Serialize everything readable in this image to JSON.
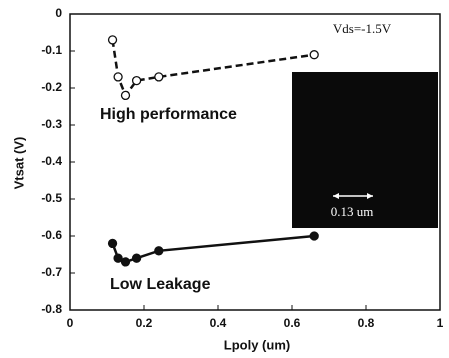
{
  "chart_data": {
    "type": "line",
    "x_label": "Lpoly (um)",
    "y_label": "Vtsat (V)",
    "annotations": [
      "Vds=-1.5V",
      "0.13 um"
    ],
    "xlim": [
      0,
      1
    ],
    "xticks": [
      0,
      0.2,
      0.4,
      0.6,
      0.8,
      1
    ],
    "ylim": [
      -0.8,
      0
    ],
    "yticks": [
      0,
      -0.1,
      -0.2,
      -0.3,
      -0.4,
      -0.5,
      -0.6,
      -0.7,
      -0.8
    ],
    "series": [
      {
        "name": "High performance",
        "color": "#111111",
        "marker": "open",
        "dashed": true,
        "x": [
          0.115,
          0.13,
          0.15,
          0.18,
          0.24,
          0.66
        ],
        "values": [
          -0.07,
          -0.17,
          -0.22,
          -0.18,
          -0.17,
          -0.11
        ]
      },
      {
        "name": "Low Leakage",
        "color": "#111111",
        "marker": "filled",
        "dashed": false,
        "x": [
          0.115,
          0.13,
          0.15,
          0.18,
          0.24,
          0.66
        ],
        "values": [
          -0.62,
          -0.66,
          -0.67,
          -0.66,
          -0.64,
          -0.6
        ]
      }
    ]
  }
}
